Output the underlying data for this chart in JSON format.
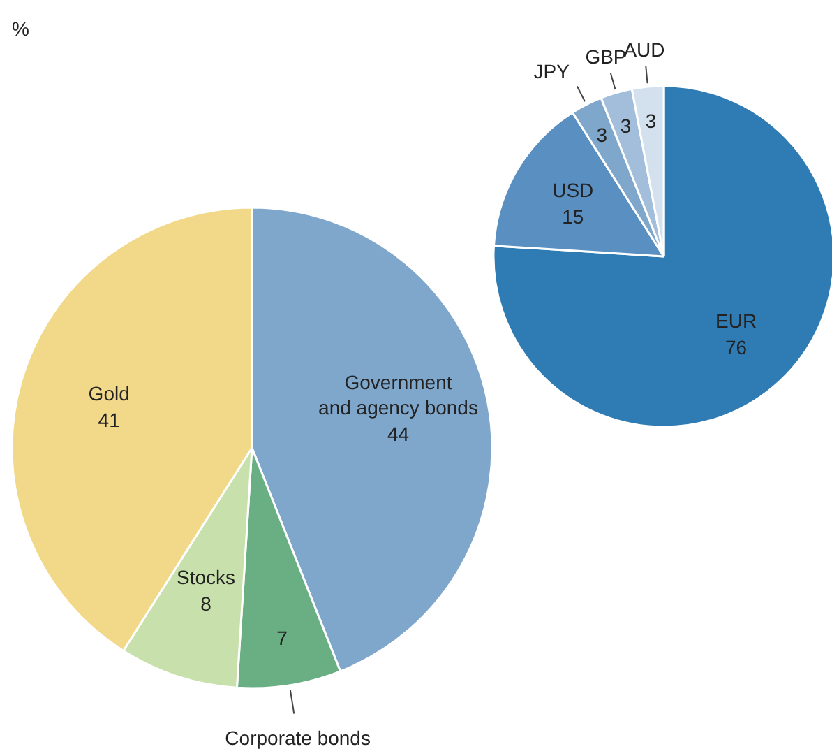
{
  "chart_data": [
    {
      "type": "pie",
      "categories": [
        "Government and agency bonds",
        "Corporate bonds",
        "Stocks",
        "Gold"
      ],
      "values": [
        44,
        7,
        8,
        41
      ],
      "colors": [
        "#7fa6cb",
        "#6aaf84",
        "#c8e0ac",
        "#f2d98a"
      ],
      "data_labels": true,
      "annotations": [
        "%"
      ]
    },
    {
      "type": "pie",
      "categories": [
        "EUR",
        "USD",
        "JPY",
        "GBP",
        "AUD"
      ],
      "values": [
        76,
        15,
        3,
        3,
        3
      ],
      "colors": [
        "#2f7bb3",
        "#5a8fc2",
        "#7fa6cb",
        "#a3bedb",
        "#d3e0ee"
      ],
      "data_labels": true
    }
  ]
}
